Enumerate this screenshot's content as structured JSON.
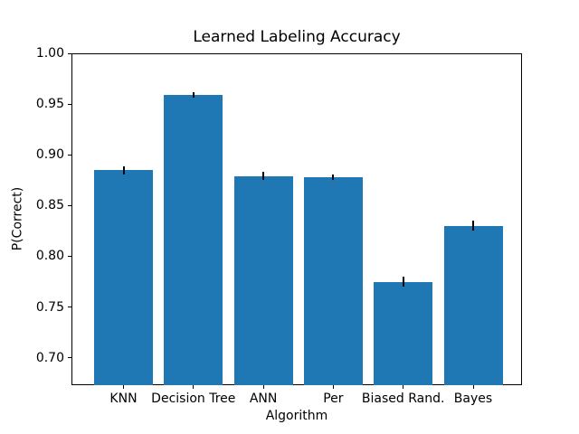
{
  "figure": {
    "title": "Learned Labeling Accuracy",
    "xlabel": "Algorithm",
    "ylabel": "P(Correct)"
  },
  "chart_data": {
    "type": "bar",
    "title": "Learned Labeling Accuracy",
    "xlabel": "Algorithm",
    "ylabel": "P(Correct)",
    "categories": [
      "KNN",
      "Decision Tree",
      "ANN",
      "Per",
      "Biased Rand.",
      "Bayes"
    ],
    "values": [
      0.885,
      0.959,
      0.879,
      0.878,
      0.775,
      0.83
    ],
    "error_bars": [
      0.004,
      0.003,
      0.004,
      0.003,
      0.005,
      0.005
    ],
    "yticks": [
      1.0,
      0.95,
      0.9,
      0.85,
      0.8,
      0.75,
      0.7
    ],
    "ytick_labels": [
      "1.00",
      "0.95",
      "0.90",
      "0.85",
      "0.80",
      "0.75",
      "0.70"
    ],
    "ylim": [
      0.673,
      1.0
    ],
    "grid": false,
    "legend_position": "none",
    "bar_color": "#1f77b4",
    "error_color": "#000000",
    "background_color": "#ffffff",
    "spine_color": "#000000"
  }
}
